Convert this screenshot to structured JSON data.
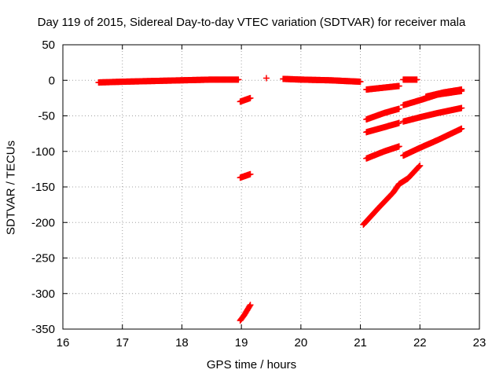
{
  "chart_data": {
    "type": "scatter",
    "title": "Day 119 of 2015, Sidereal Day-to-day VTEC variation (SDTVAR) for receiver mala",
    "xlabel": "GPS time / hours",
    "ylabel": "SDTVAR / TECUs",
    "xlim": [
      16,
      23
    ],
    "ylim": [
      -350,
      50
    ],
    "xticks": [
      16,
      17,
      18,
      19,
      20,
      21,
      22,
      23
    ],
    "yticks": [
      50,
      0,
      -50,
      -100,
      -150,
      -200,
      -250,
      -300,
      -350
    ],
    "grid": true,
    "marker": "+",
    "color": "#ff0000",
    "series": [
      {
        "points": [
          [
            16.6,
            -3
          ],
          [
            17.0,
            -2
          ],
          [
            17.5,
            -1
          ],
          [
            18.0,
            0
          ],
          [
            18.5,
            1
          ],
          [
            18.95,
            1
          ]
        ]
      },
      {
        "points": [
          [
            18.98,
            -30
          ],
          [
            19.15,
            -25
          ]
        ]
      },
      {
        "points": [
          [
            18.98,
            -137
          ],
          [
            19.15,
            -132
          ]
        ]
      },
      {
        "points": [
          [
            18.98,
            -338
          ],
          [
            19.05,
            -330
          ],
          [
            19.15,
            -316
          ]
        ]
      },
      {
        "points": [
          [
            19.42,
            3
          ]
        ]
      },
      {
        "points": [
          [
            19.7,
            2
          ],
          [
            20.0,
            1
          ],
          [
            20.5,
            0
          ],
          [
            21.0,
            -2
          ]
        ]
      },
      {
        "points": [
          [
            21.1,
            -13
          ],
          [
            21.65,
            -8
          ]
        ]
      },
      {
        "points": [
          [
            21.72,
            1
          ],
          [
            21.95,
            1
          ]
        ]
      },
      {
        "points": [
          [
            21.1,
            -55
          ],
          [
            21.4,
            -46
          ],
          [
            21.65,
            -40
          ]
        ]
      },
      {
        "points": [
          [
            21.1,
            -73
          ],
          [
            21.4,
            -66
          ],
          [
            21.65,
            -60
          ]
        ]
      },
      {
        "points": [
          [
            21.1,
            -110
          ],
          [
            21.4,
            -100
          ],
          [
            21.65,
            -93
          ]
        ]
      },
      {
        "points": [
          [
            21.05,
            -203
          ],
          [
            21.3,
            -180
          ],
          [
            21.55,
            -158
          ],
          [
            21.65,
            -146
          ]
        ]
      },
      {
        "points": [
          [
            21.65,
            -146
          ],
          [
            21.8,
            -138
          ],
          [
            22.0,
            -120
          ]
        ]
      },
      {
        "points": [
          [
            21.72,
            -35
          ],
          [
            22.0,
            -28
          ],
          [
            22.3,
            -20
          ],
          [
            22.7,
            -15
          ]
        ]
      },
      {
        "points": [
          [
            22.1,
            -23
          ],
          [
            22.4,
            -17
          ],
          [
            22.7,
            -13
          ]
        ]
      },
      {
        "points": [
          [
            21.72,
            -58
          ],
          [
            22.0,
            -52
          ],
          [
            22.3,
            -46
          ],
          [
            22.7,
            -39
          ]
        ]
      },
      {
        "points": [
          [
            21.72,
            -106
          ],
          [
            22.0,
            -95
          ],
          [
            22.3,
            -84
          ],
          [
            22.7,
            -68
          ]
        ]
      }
    ]
  }
}
